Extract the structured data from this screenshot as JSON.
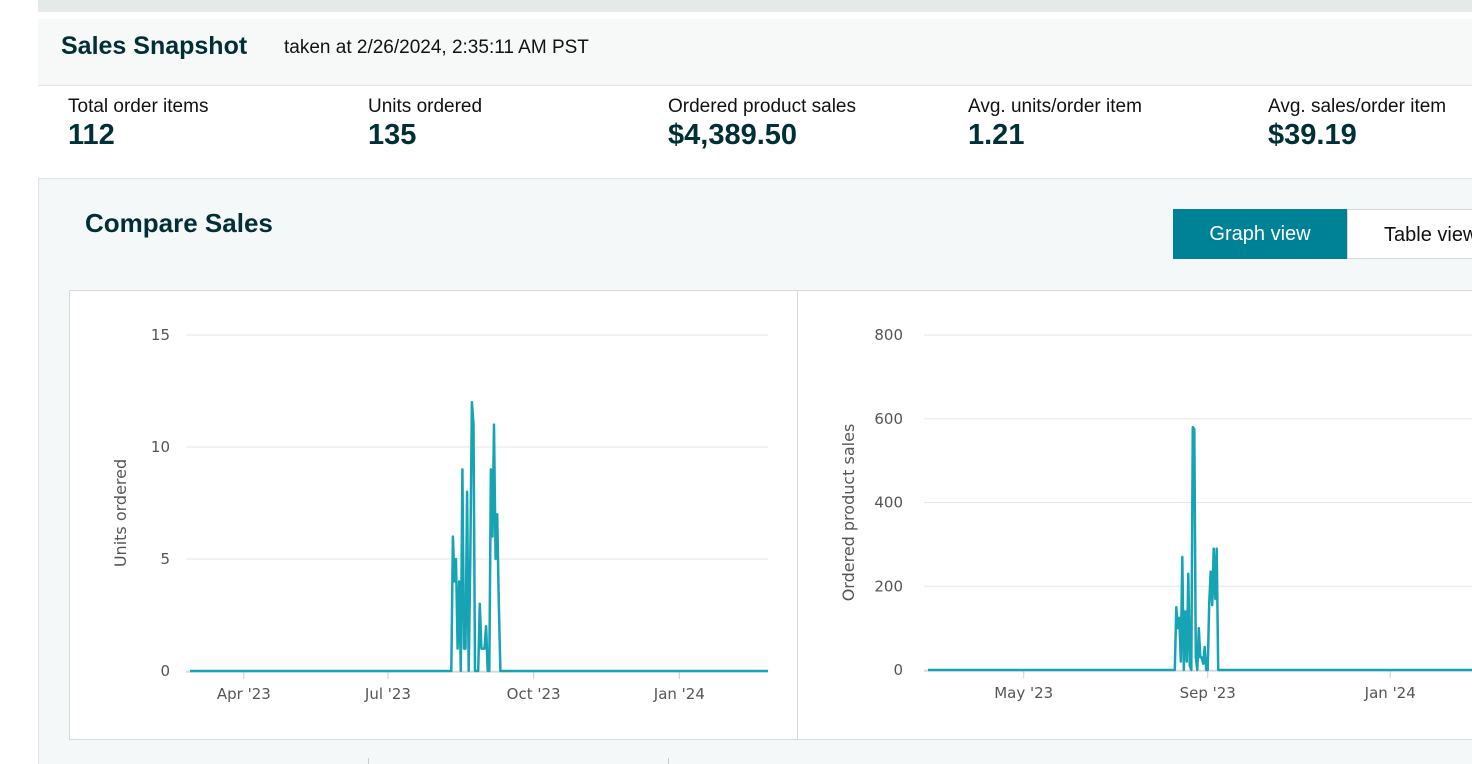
{
  "header": {
    "title": "Sales Snapshot",
    "timestamp": "taken at 2/26/2024, 2:35:11 AM PST"
  },
  "metrics": [
    {
      "label": "Total order items",
      "value": "112"
    },
    {
      "label": "Units ordered",
      "value": "135"
    },
    {
      "label": "Ordered product sales",
      "value": "$4,389.50"
    },
    {
      "label": "Avg. units/order item",
      "value": "1.21"
    },
    {
      "label": "Avg. sales/order item",
      "value": "$39.19"
    }
  ],
  "compare": {
    "title": "Compare Sales",
    "graph_view_label": "Graph view",
    "table_view_label": "Table view"
  },
  "colors": {
    "line": "#16a3b4",
    "accent": "#008296",
    "grid": "#e6e6e6"
  },
  "chart_data": [
    {
      "type": "line",
      "title": "",
      "ylabel": "Units ordered",
      "xlabel": "",
      "ylim": [
        0,
        15
      ],
      "yticks": [
        0,
        5,
        10,
        15
      ],
      "xlim": [
        "2023-02-26",
        "2024-02-26"
      ],
      "xticks": [
        {
          "date": "2023-04-01",
          "label": "Apr '23"
        },
        {
          "date": "2023-07-01",
          "label": "Jul '23"
        },
        {
          "date": "2023-10-01",
          "label": "Oct '23"
        },
        {
          "date": "2024-01-01",
          "label": "Jan '24"
        }
      ],
      "series": [
        {
          "points": [
            [
              "2023-02-26",
              0
            ],
            [
              "2023-08-10",
              0
            ],
            [
              "2023-08-11",
              6
            ],
            [
              "2023-08-12",
              4
            ],
            [
              "2023-08-13",
              5
            ],
            [
              "2023-08-14",
              1
            ],
            [
              "2023-08-15",
              4
            ],
            [
              "2023-08-16",
              0
            ],
            [
              "2023-08-17",
              9
            ],
            [
              "2023-08-18",
              1
            ],
            [
              "2023-08-19",
              1
            ],
            [
              "2023-08-20",
              8
            ],
            [
              "2023-08-21",
              0
            ],
            [
              "2023-08-22",
              5
            ],
            [
              "2023-08-23",
              12
            ],
            [
              "2023-08-24",
              11
            ],
            [
              "2023-08-25",
              0
            ],
            [
              "2023-08-26",
              0
            ],
            [
              "2023-08-27",
              0
            ],
            [
              "2023-08-28",
              3
            ],
            [
              "2023-08-29",
              1
            ],
            [
              "2023-08-30",
              1
            ],
            [
              "2023-08-31",
              1
            ],
            [
              "2023-09-01",
              2
            ],
            [
              "2023-09-02",
              0
            ],
            [
              "2023-09-03",
              0
            ],
            [
              "2023-09-04",
              9
            ],
            [
              "2023-09-05",
              6
            ],
            [
              "2023-09-06",
              11
            ],
            [
              "2023-09-07",
              5
            ],
            [
              "2023-09-08",
              7
            ],
            [
              "2023-09-09",
              3
            ],
            [
              "2023-09-10",
              0
            ],
            [
              "2024-02-26",
              0
            ]
          ]
        }
      ]
    },
    {
      "type": "line",
      "title": "",
      "ylabel": "Ordered product sales",
      "xlabel": "",
      "ylim": [
        0,
        800
      ],
      "yticks": [
        0,
        200,
        400,
        600,
        800
      ],
      "xlim": [
        "2023-02-26",
        "2024-02-26"
      ],
      "xticks": [
        {
          "date": "2023-05-01",
          "label": "May '23"
        },
        {
          "date": "2023-09-01",
          "label": "Sep '23"
        },
        {
          "date": "2024-01-01",
          "label": "Jan '24"
        }
      ],
      "series": [
        {
          "points": [
            [
              "2023-02-26",
              0
            ],
            [
              "2023-08-10",
              0
            ],
            [
              "2023-08-11",
              150
            ],
            [
              "2023-08-12",
              100
            ],
            [
              "2023-08-13",
              125
            ],
            [
              "2023-08-14",
              20
            ],
            [
              "2023-08-15",
              270
            ],
            [
              "2023-08-16",
              0
            ],
            [
              "2023-08-17",
              140
            ],
            [
              "2023-08-18",
              20
            ],
            [
              "2023-08-19",
              230
            ],
            [
              "2023-08-20",
              10
            ],
            [
              "2023-08-21",
              0
            ],
            [
              "2023-08-22",
              580
            ],
            [
              "2023-08-23",
              575
            ],
            [
              "2023-08-24",
              30
            ],
            [
              "2023-08-25",
              0
            ],
            [
              "2023-08-26",
              100
            ],
            [
              "2023-08-27",
              30
            ],
            [
              "2023-08-28",
              30
            ],
            [
              "2023-08-29",
              15
            ],
            [
              "2023-08-30",
              55
            ],
            [
              "2023-08-31",
              0
            ],
            [
              "2023-09-01",
              0
            ],
            [
              "2023-09-02",
              160
            ],
            [
              "2023-09-03",
              235
            ],
            [
              "2023-09-04",
              155
            ],
            [
              "2023-09-05",
              290
            ],
            [
              "2023-09-06",
              170
            ],
            [
              "2023-09-07",
              290
            ],
            [
              "2023-09-08",
              0
            ],
            [
              "2024-02-26",
              0
            ]
          ]
        }
      ]
    }
  ]
}
